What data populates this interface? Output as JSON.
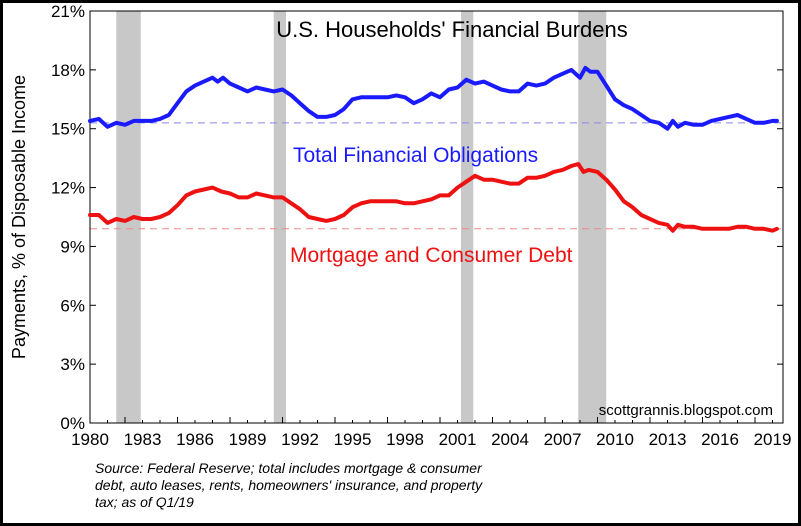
{
  "chart_data": {
    "type": "line",
    "title": "U.S. Households' Financial Burdens",
    "ylabel": "Payments, % of Disposable Income",
    "xlabel": "",
    "xlim": [
      1980,
      2019.6
    ],
    "ylim": [
      0,
      21
    ],
    "y_ticks": [
      "0%",
      "3%",
      "6%",
      "9%",
      "12%",
      "15%",
      "18%",
      "21%"
    ],
    "y_tick_values": [
      0,
      3,
      6,
      9,
      12,
      15,
      18,
      21
    ],
    "x_ticks": [
      "1980",
      "1983",
      "1986",
      "1989",
      "1992",
      "1995",
      "1998",
      "2001",
      "2004",
      "2007",
      "2010",
      "2013",
      "2016",
      "2019"
    ],
    "x_tick_values": [
      1980,
      1983,
      1986,
      1989,
      1992,
      1995,
      1998,
      2001,
      2004,
      2007,
      2010,
      2013,
      2016,
      2019
    ],
    "recessions": [
      [
        1981.5,
        1982.9
      ],
      [
        1990.5,
        1991.2
      ],
      [
        2001.2,
        2001.9
      ],
      [
        2007.9,
        2009.5
      ]
    ],
    "series": [
      {
        "name": "Total Financial Obligations",
        "color": "#1a1aff",
        "average": 15.3,
        "x": [
          1980,
          1980.5,
          1981,
          1981.5,
          1982,
          1982.5,
          1983,
          1983.5,
          1984,
          1984.5,
          1985,
          1985.5,
          1986,
          1986.5,
          1987,
          1987.3,
          1987.6,
          1988,
          1988.5,
          1989,
          1989.5,
          1990,
          1990.5,
          1991,
          1991.5,
          1992,
          1992.5,
          1993,
          1993.5,
          1994,
          1994.5,
          1995,
          1995.5,
          1996,
          1996.5,
          1997,
          1997.5,
          1998,
          1998.5,
          1999,
          1999.5,
          2000,
          2000.5,
          2001,
          2001.5,
          2002,
          2002.5,
          2003,
          2003.5,
          2004,
          2004.5,
          2005,
          2005.5,
          2006,
          2006.5,
          2007,
          2007.5,
          2008,
          2008.3,
          2008.6,
          2009,
          2009.5,
          2010,
          2010.5,
          2011,
          2011.5,
          2012,
          2012.5,
          2013,
          2013.3,
          2013.6,
          2014,
          2014.5,
          2015,
          2015.5,
          2016,
          2016.5,
          2017,
          2017.5,
          2018,
          2018.5,
          2019,
          2019.25
        ],
        "values": [
          15.4,
          15.5,
          15.1,
          15.3,
          15.2,
          15.4,
          15.4,
          15.4,
          15.5,
          15.7,
          16.3,
          16.9,
          17.2,
          17.4,
          17.6,
          17.4,
          17.6,
          17.3,
          17.1,
          16.9,
          17.1,
          17.0,
          16.9,
          17.0,
          16.7,
          16.3,
          15.9,
          15.6,
          15.6,
          15.7,
          16.0,
          16.5,
          16.6,
          16.6,
          16.6,
          16.6,
          16.7,
          16.6,
          16.3,
          16.5,
          16.8,
          16.6,
          17.0,
          17.1,
          17.5,
          17.3,
          17.4,
          17.2,
          17.0,
          16.9,
          16.9,
          17.3,
          17.2,
          17.3,
          17.6,
          17.8,
          18.0,
          17.6,
          18.1,
          17.9,
          17.9,
          17.2,
          16.5,
          16.2,
          16.0,
          15.7,
          15.4,
          15.3,
          15.0,
          15.4,
          15.1,
          15.3,
          15.2,
          15.2,
          15.4,
          15.5,
          15.6,
          15.7,
          15.5,
          15.3,
          15.3,
          15.4,
          15.4
        ]
      },
      {
        "name": "Mortgage and Consumer Debt",
        "color": "#ee1111",
        "average": 9.9,
        "x": [
          1980,
          1980.5,
          1981,
          1981.5,
          1982,
          1982.5,
          1983,
          1983.5,
          1984,
          1984.5,
          1985,
          1985.5,
          1986,
          1986.5,
          1987,
          1987.5,
          1988,
          1988.5,
          1989,
          1989.5,
          1990,
          1990.5,
          1991,
          1991.5,
          1992,
          1992.5,
          1993,
          1993.5,
          1994,
          1994.5,
          1995,
          1995.5,
          1996,
          1996.5,
          1997,
          1997.5,
          1998,
          1998.5,
          1999,
          1999.5,
          2000,
          2000.5,
          2001,
          2001.5,
          2002,
          2002.5,
          2003,
          2003.5,
          2004,
          2004.5,
          2005,
          2005.5,
          2006,
          2006.5,
          2007,
          2007.5,
          2007.9,
          2008.2,
          2008.5,
          2009,
          2009.5,
          2010,
          2010.5,
          2011,
          2011.5,
          2012,
          2012.5,
          2013,
          2013.3,
          2013.6,
          2014,
          2014.5,
          2015,
          2015.5,
          2016,
          2016.5,
          2017,
          2017.5,
          2018,
          2018.5,
          2019,
          2019.25
        ],
        "values": [
          10.6,
          10.6,
          10.2,
          10.4,
          10.3,
          10.5,
          10.4,
          10.4,
          10.5,
          10.7,
          11.1,
          11.6,
          11.8,
          11.9,
          12.0,
          11.8,
          11.7,
          11.5,
          11.5,
          11.7,
          11.6,
          11.5,
          11.5,
          11.2,
          10.9,
          10.5,
          10.4,
          10.3,
          10.4,
          10.6,
          11.0,
          11.2,
          11.3,
          11.3,
          11.3,
          11.3,
          11.2,
          11.2,
          11.3,
          11.4,
          11.6,
          11.6,
          12.0,
          12.3,
          12.6,
          12.4,
          12.4,
          12.3,
          12.2,
          12.2,
          12.5,
          12.5,
          12.6,
          12.8,
          12.9,
          13.1,
          13.2,
          12.8,
          12.9,
          12.8,
          12.4,
          11.9,
          11.3,
          11.0,
          10.6,
          10.4,
          10.2,
          10.1,
          9.8,
          10.1,
          10.0,
          10.0,
          9.9,
          9.9,
          9.9,
          9.9,
          10.0,
          10.0,
          9.9,
          9.9,
          9.8,
          9.9
        ]
      }
    ],
    "series_labels": [
      "Total Financial Obligations",
      "Mortgage and Consumer Debt"
    ],
    "credit": "scottgrannis.blogspot.com",
    "source_lines": [
      "Source: Federal Reserve; total includes mortgage & consumer",
      "debt, auto leases, rents, homeowners' insurance, and property",
      "tax; as of Q1/19"
    ],
    "grid": false,
    "legend": "inline labels"
  }
}
